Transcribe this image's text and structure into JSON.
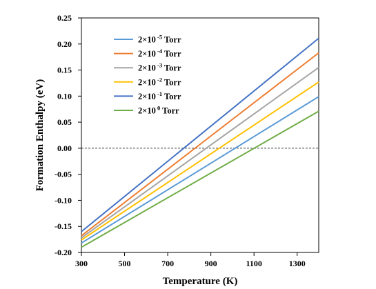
{
  "chart_data": {
    "type": "line",
    "xlabel": "Temperature (K)",
    "ylabel": "Formation Enthalpy (eV)",
    "xlim": [
      300,
      1400
    ],
    "ylim": [
      -0.2,
      0.25
    ],
    "x_ticks": [
      300,
      500,
      700,
      900,
      1100,
      1300
    ],
    "x_tick_labels": [
      "300",
      "500",
      "700",
      "900",
      "1100",
      "1300"
    ],
    "y_ticks": [
      -0.2,
      -0.15,
      -0.1,
      -0.05,
      0.0,
      0.05,
      0.1,
      0.15,
      0.2,
      0.25
    ],
    "y_tick_labels": [
      "-0.20",
      "-0.15",
      "-0.10",
      "-0.05",
      "0.00",
      "0.05",
      "0.10",
      "0.15",
      "0.20",
      "0.25"
    ],
    "reference_line": {
      "y": 0.0,
      "style": "dashed"
    },
    "grid": false,
    "legend_position": "top-left",
    "series": [
      {
        "name": "2×10",
        "exponent": "-5",
        "suffix": " Torr",
        "color": "#5B9BD5",
        "x": [
          300,
          1400
        ],
        "y": [
          -0.182,
          0.099
        ]
      },
      {
        "name": "2×10",
        "exponent": "-4",
        "suffix": " Torr",
        "color": "#ED7D31",
        "x": [
          300,
          1400
        ],
        "y": [
          -0.168,
          0.183
        ]
      },
      {
        "name": "2×10",
        "exponent": "-3",
        "suffix": " Torr",
        "color": "#A5A5A5",
        "x": [
          300,
          1400
        ],
        "y": [
          -0.172,
          0.155
        ]
      },
      {
        "name": "2×10",
        "exponent": "-2",
        "suffix": " Torr",
        "color": "#FFC000",
        "x": [
          300,
          1400
        ],
        "y": [
          -0.176,
          0.127
        ]
      },
      {
        "name": "2×10",
        "exponent": "-1",
        "suffix": " Torr",
        "color": "#4472C4",
        "x": [
          300,
          1400
        ],
        "y": [
          -0.16,
          0.211
        ]
      },
      {
        "name": "2×10",
        "exponent": "0",
        "suffix": " Torr",
        "color": "#70AD47",
        "x": [
          300,
          1400
        ],
        "y": [
          -0.19,
          0.071
        ]
      }
    ]
  }
}
